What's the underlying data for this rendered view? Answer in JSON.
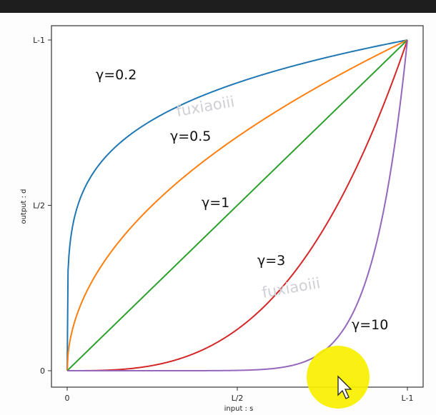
{
  "chart_data": {
    "type": "line",
    "xlabel": "input : s",
    "ylabel": "output : d",
    "xlim": [
      0,
      1
    ],
    "ylim": [
      0,
      1
    ],
    "x_ticks": [
      {
        "value": 0,
        "label": "0"
      },
      {
        "value": 0.5,
        "label": "L/2"
      },
      {
        "value": 1,
        "label": "L-1"
      }
    ],
    "y_ticks": [
      {
        "value": 0,
        "label": "0"
      },
      {
        "value": 0.5,
        "label": "L/2"
      },
      {
        "value": 1,
        "label": "L-1"
      }
    ],
    "grid": false,
    "series": [
      {
        "name": "γ=0.2",
        "gamma": 0.2,
        "color": "#1f77b4"
      },
      {
        "name": "γ=0.5",
        "gamma": 0.5,
        "color": "#ff7f0e"
      },
      {
        "name": "γ=1",
        "gamma": 1,
        "color": "#2ca02c"
      },
      {
        "name": "γ=3",
        "gamma": 3,
        "color": "#d62728"
      },
      {
        "name": "γ=10",
        "gamma": 10,
        "color": "#9467bd"
      }
    ]
  },
  "watermarks": [
    "fuxiaoiii",
    "fuxiaoiii"
  ],
  "cursor": {
    "highlight_color": "#f7f000"
  }
}
